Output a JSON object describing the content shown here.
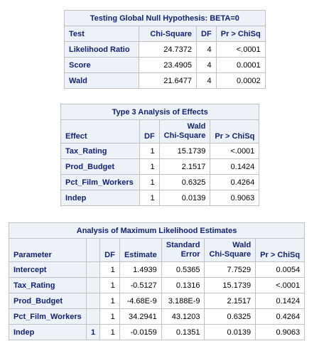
{
  "table1": {
    "title": "Testing Global Null Hypothesis: BETA=0",
    "headers": [
      "Test",
      "Chi-Square",
      "DF",
      "Pr > ChiSq"
    ],
    "rows": [
      {
        "test": "Likelihood Ratio",
        "chisq": "24.7372",
        "df": "4",
        "p": "<.0001"
      },
      {
        "test": "Score",
        "chisq": "23.4905",
        "df": "4",
        "p": "0.0001"
      },
      {
        "test": "Wald",
        "chisq": "21.6477",
        "df": "4",
        "p": "0.0002"
      }
    ]
  },
  "table2": {
    "title": "Type 3 Analysis of Effects",
    "headers": {
      "effect": "Effect",
      "df": "DF",
      "wald_top": "Wald",
      "wald_bottom": "Chi-Square",
      "p": "Pr > ChiSq"
    },
    "rows": [
      {
        "effect": "Tax_Rating",
        "df": "1",
        "chisq": "15.1739",
        "p": "<.0001"
      },
      {
        "effect": "Prod_Budget",
        "df": "1",
        "chisq": "2.1517",
        "p": "0.1424"
      },
      {
        "effect": "Pct_Film_Workers",
        "df": "1",
        "chisq": "0.6325",
        "p": "0.4264"
      },
      {
        "effect": "Indep",
        "df": "1",
        "chisq": "0.0139",
        "p": "0.9063"
      }
    ]
  },
  "table3": {
    "title": "Analysis of Maximum Likelihood Estimates",
    "headers": {
      "parameter": "Parameter",
      "df": "DF",
      "estimate": "Estimate",
      "se_top": "Standard",
      "se_bottom": "Error",
      "wald_top": "Wald",
      "wald_bottom": "Chi-Square",
      "p": "Pr > ChiSq"
    },
    "rows": [
      {
        "parameter": "Intercept",
        "level": "",
        "df": "1",
        "estimate": "1.4939",
        "se": "0.5365",
        "chisq": "7.7529",
        "p": "0.0054"
      },
      {
        "parameter": "Tax_Rating",
        "level": "",
        "df": "1",
        "estimate": "-0.5127",
        "se": "0.1316",
        "chisq": "15.1739",
        "p": "<.0001"
      },
      {
        "parameter": "Prod_Budget",
        "level": "",
        "df": "1",
        "estimate": "-4.68E-9",
        "se": "3.188E-9",
        "chisq": "2.1517",
        "p": "0.1424"
      },
      {
        "parameter": "Pct_Film_Workers",
        "level": "",
        "df": "1",
        "estimate": "34.2941",
        "se": "43.1203",
        "chisq": "0.6325",
        "p": "0.4264"
      },
      {
        "parameter": "Indep",
        "level": "1",
        "df": "1",
        "estimate": "-0.0159",
        "se": "0.1351",
        "chisq": "0.0139",
        "p": "0.9063"
      }
    ]
  }
}
